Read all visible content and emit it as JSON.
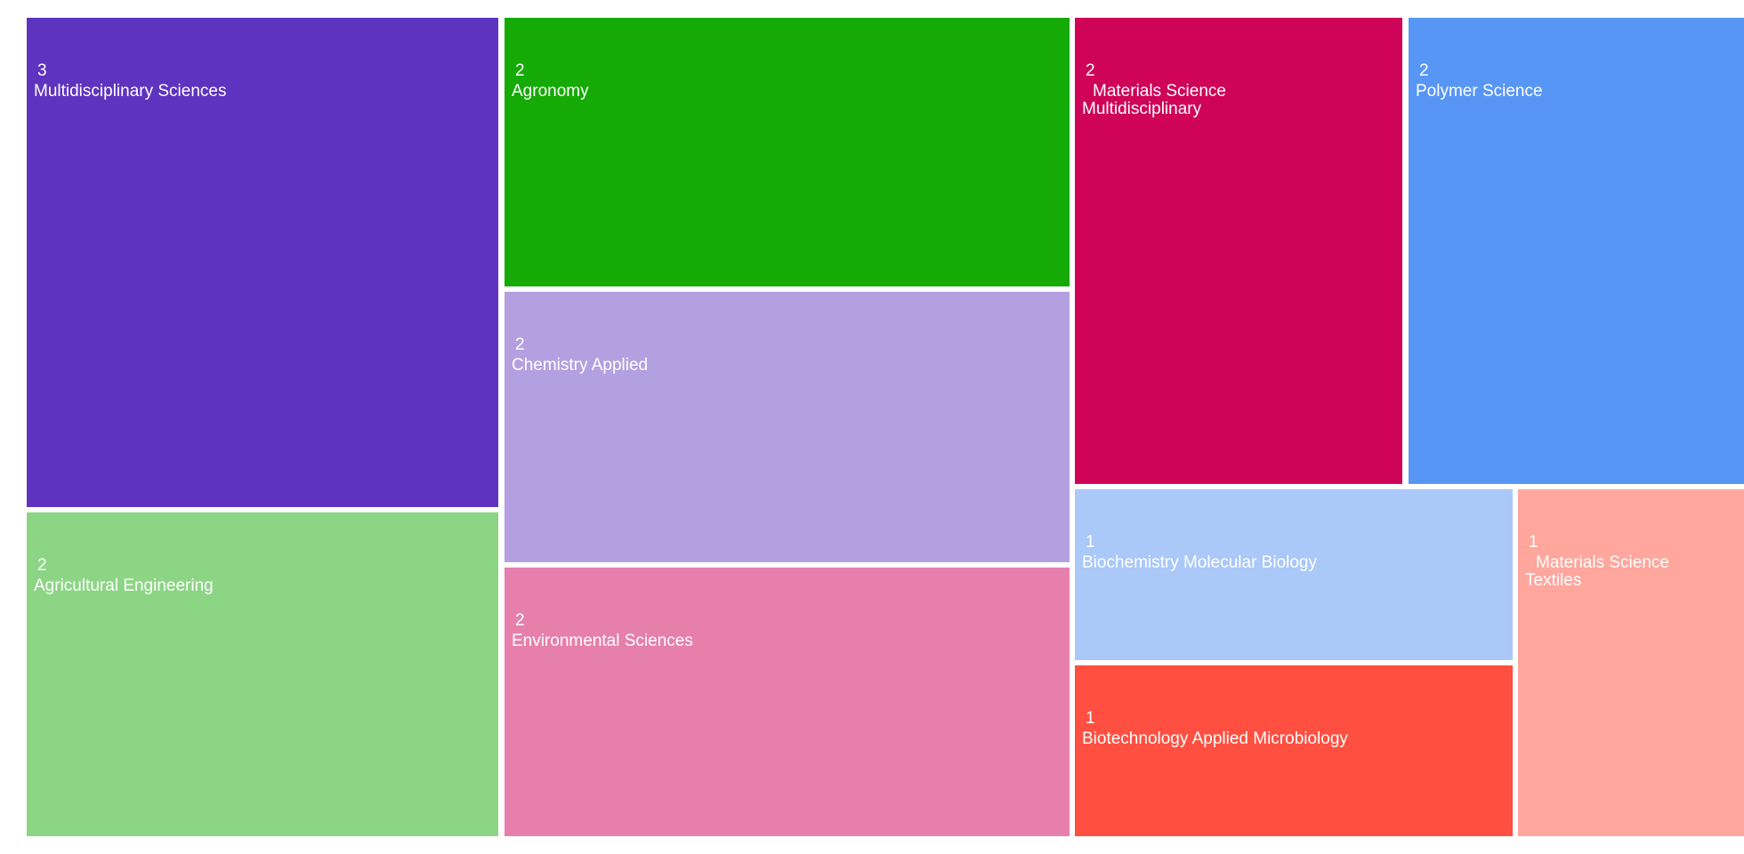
{
  "chart_data": {
    "type": "treemap",
    "title": "",
    "cells": [
      {
        "label": "Multidisciplinary Sciences",
        "label_lines": [
          "Multidisciplinary Sciences"
        ],
        "value": 3,
        "color": "#5e33bf"
      },
      {
        "label": "Agricultural Engineering",
        "label_lines": [
          "Agricultural Engineering"
        ],
        "value": 2,
        "color": "#8cd584"
      },
      {
        "label": "Agronomy",
        "label_lines": [
          "Agronomy"
        ],
        "value": 2,
        "color": "#15aa05"
      },
      {
        "label": "Chemistry Applied",
        "label_lines": [
          "Chemistry Applied"
        ],
        "value": 2,
        "color": "#b4a0e0"
      },
      {
        "label": "Environmental Sciences",
        "label_lines": [
          "Environmental Sciences"
        ],
        "value": 2,
        "color": "#e67fac"
      },
      {
        "label": "Materials Science Multidisciplinary",
        "label_lines": [
          "Materials Science",
          "Multidisciplinary"
        ],
        "value": 2,
        "color": "#cf0358"
      },
      {
        "label": "Polymer Science",
        "label_lines": [
          "Polymer Science"
        ],
        "value": 2,
        "color": "#5896f5"
      },
      {
        "label": "Biochemistry Molecular Biology",
        "label_lines": [
          "Biochemistry Molecular Biology"
        ],
        "value": 1,
        "color": "#aac8f8"
      },
      {
        "label": "Biotechnology Applied Microbiology",
        "label_lines": [
          "Biotechnology Applied Microbiology"
        ],
        "value": 1,
        "color": "#ff4f40"
      },
      {
        "label": "Materials Science Textiles",
        "label_lines": [
          "Materials Science",
          "Textiles"
        ],
        "value": 1,
        "color": "#ffa69d"
      }
    ]
  }
}
